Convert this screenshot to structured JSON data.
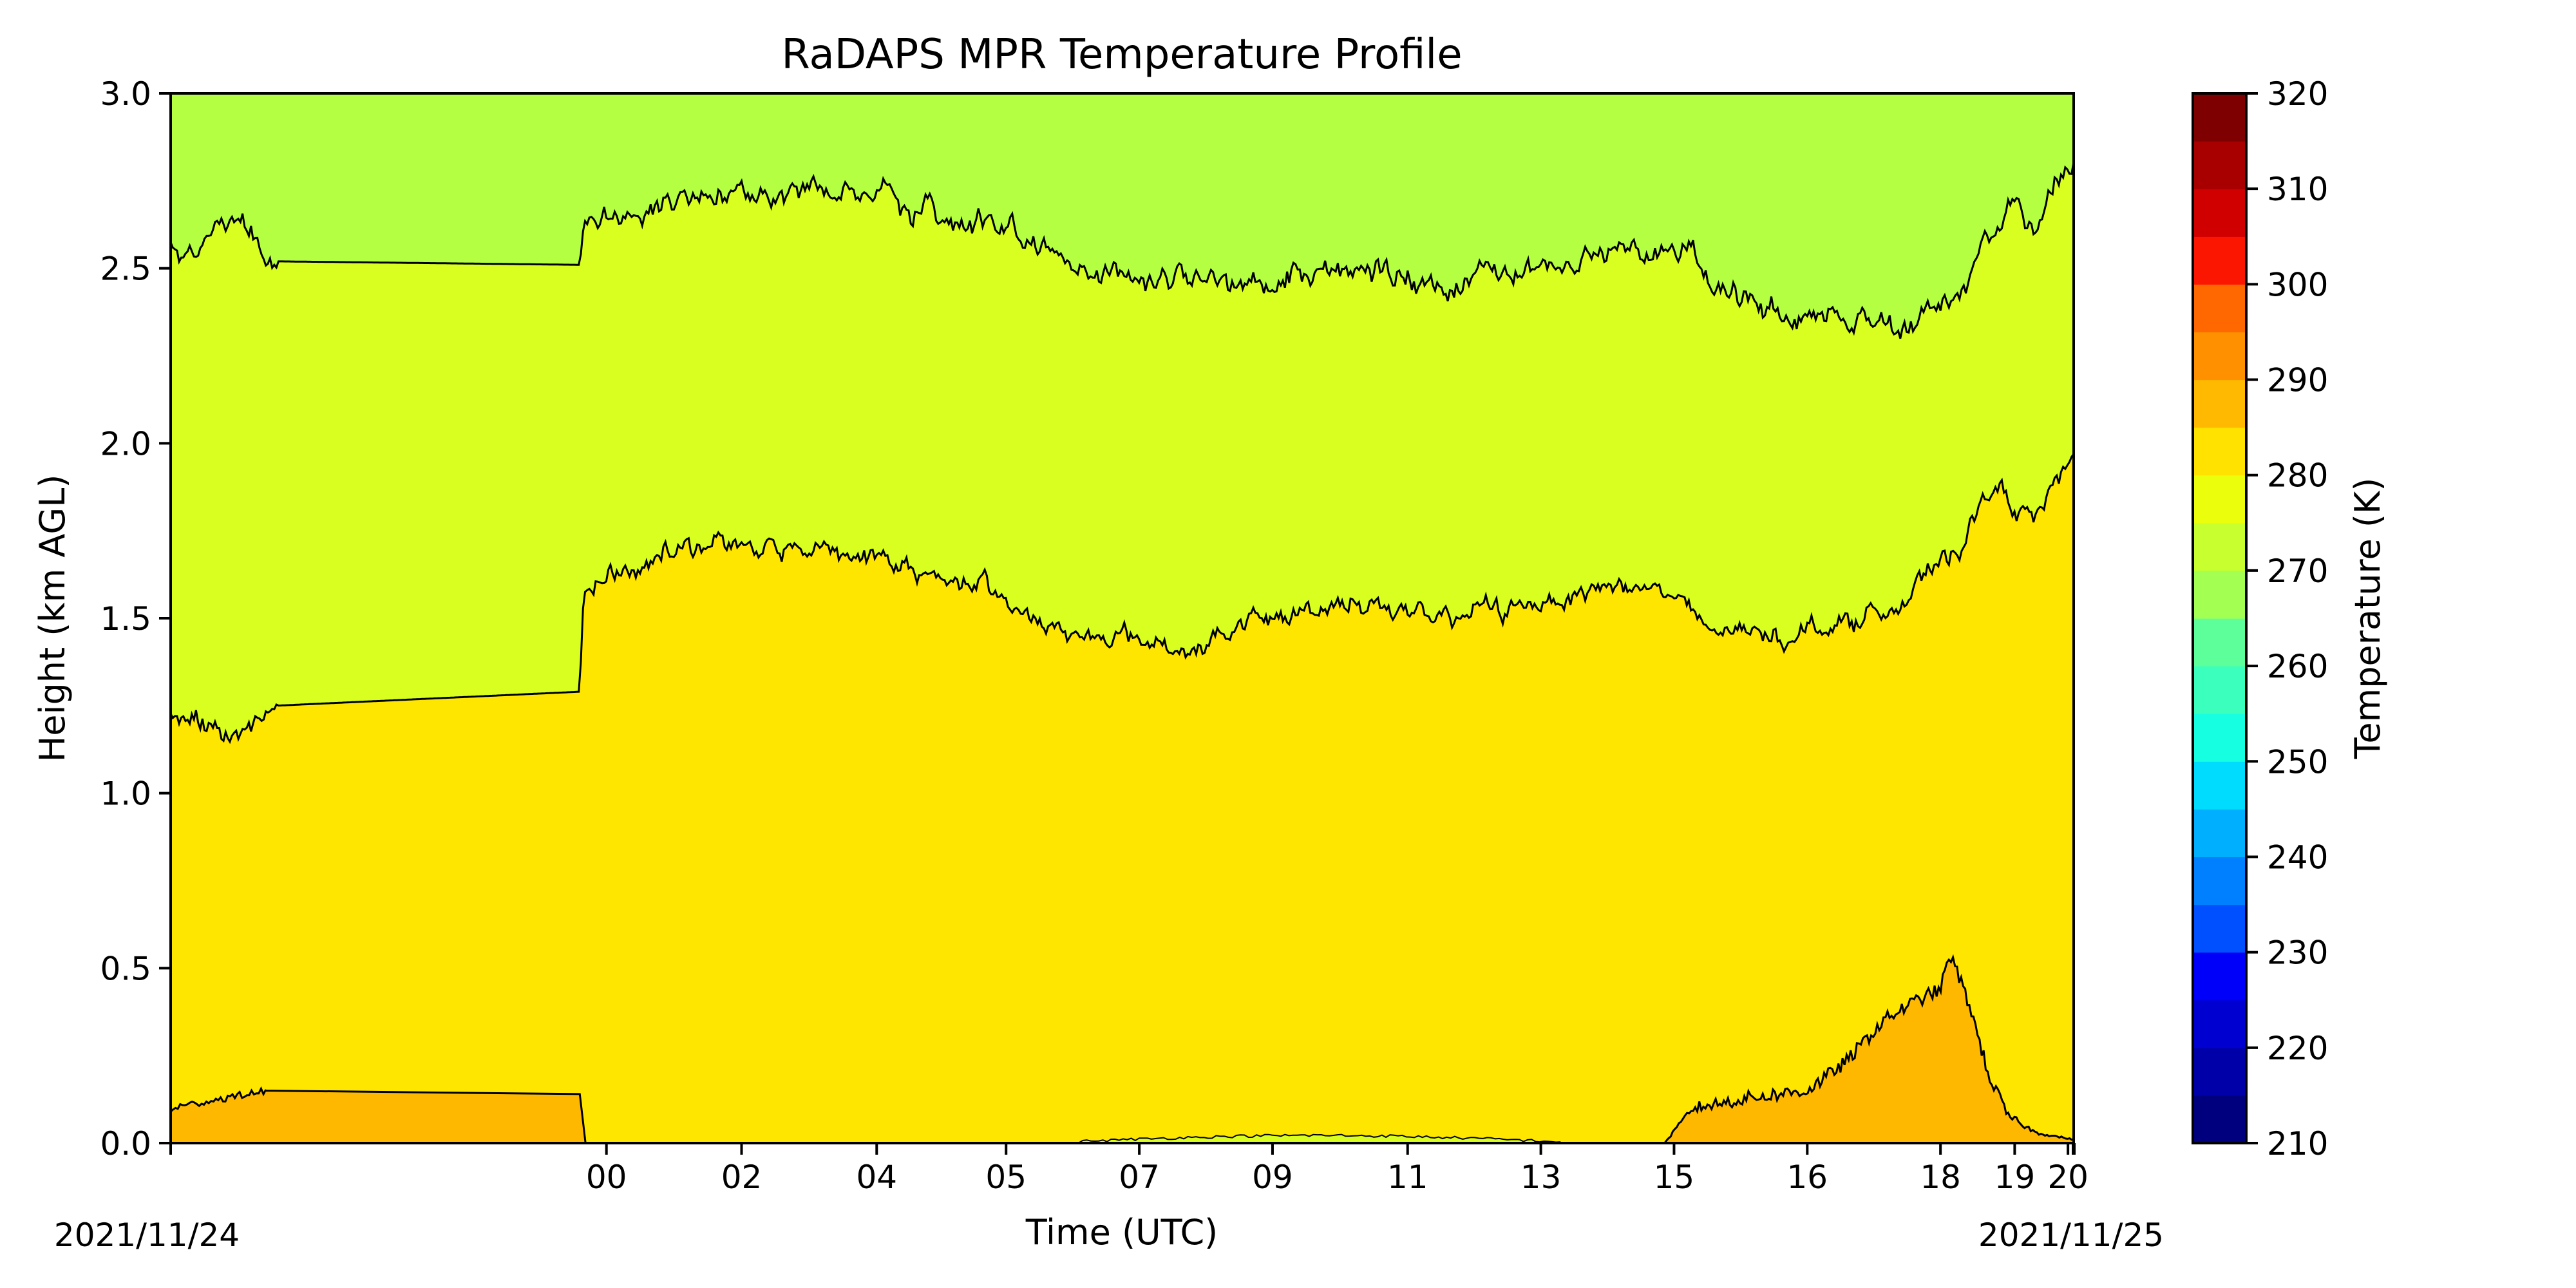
{
  "chart_data": {
    "type": "heatmap",
    "title": "RaDAPS MPR Temperature Profile",
    "xlabel": "Time (UTC)",
    "ylabel": "Height (km AGL)",
    "x_tick_labels": [
      "00",
      "02",
      "04",
      "05",
      "07",
      "09",
      "11",
      "13",
      "15",
      "16",
      "18",
      "19",
      "20"
    ],
    "x_date_labels": {
      "start": "2021/11/24",
      "end": "2021/11/25"
    },
    "y_ticks": [
      0.0,
      0.5,
      1.0,
      1.5,
      2.0,
      2.5,
      3.0
    ],
    "y_tick_labels": [
      "0.0",
      "0.5",
      "1.0",
      "1.5",
      "2.0",
      "2.5",
      "3.0"
    ],
    "ylim": [
      0.0,
      3.0
    ],
    "colorbar": {
      "label": "Temperature (K)",
      "range": [
        210,
        320
      ],
      "ticks": [
        210,
        220,
        230,
        240,
        250,
        260,
        270,
        280,
        290,
        300,
        310,
        320
      ],
      "tick_labels": [
        "210",
        "220",
        "230",
        "240",
        "250",
        "260",
        "270",
        "280",
        "290",
        "300",
        "310",
        "320"
      ],
      "colormap": "jet"
    },
    "filled_bands": [
      {
        "temperature_range_K": [
          270,
          275
        ],
        "color": "#b5ff42",
        "description": "upper layer"
      },
      {
        "temperature_range_K": [
          275,
          280
        ],
        "color": "#d8ff1f",
        "description": "middle layer"
      },
      {
        "temperature_range_K": [
          280,
          285
        ],
        "color": "#ffe600",
        "description": "lower layer"
      },
      {
        "temperature_range_K": [
          285,
          290
        ],
        "color": "#ffb800",
        "description": "near-surface warm layer"
      }
    ],
    "contour_boundaries_km": {
      "boundary_275K": {
        "start_height": 2.55,
        "end_height": 2.8,
        "min": 2.3,
        "max": 2.9
      },
      "boundary_280K": {
        "start_height": 1.25,
        "end_height": 1.95,
        "min": 1.05,
        "max": 1.97
      },
      "boundary_285K_early": {
        "start_height": 0.1,
        "end_height": 0.14,
        "max": 0.16
      },
      "boundary_285K_late": {
        "start_height": 0.0,
        "peak_height": 0.54,
        "end_height": 0.02
      }
    },
    "grid": false,
    "legend": "colorbar-right"
  }
}
